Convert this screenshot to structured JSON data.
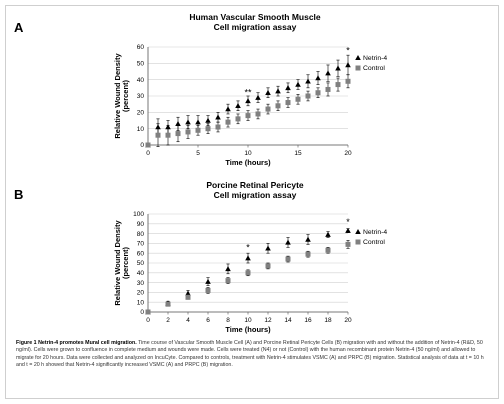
{
  "chart_data": [
    {
      "type": "scatter",
      "panel": "A",
      "title": "Human Vascular Smooth Muscle",
      "subtitle": "Cell migration assay",
      "xlabel": "Time (hours)",
      "ylabel_line1": "Relative Wound Density",
      "ylabel_line2": "(percent)",
      "xlim": [
        0,
        20
      ],
      "ylim": [
        0,
        60
      ],
      "xticks": [
        0,
        5,
        10,
        15,
        20
      ],
      "yticks": [
        0,
        10,
        20,
        30,
        40,
        50,
        60
      ],
      "grid": true,
      "legend_position": "right",
      "series": [
        {
          "name": "Netrin-4",
          "marker": "triangle",
          "color": "#000000",
          "x": [
            0,
            1,
            2,
            3,
            4,
            5,
            6,
            7,
            8,
            9,
            10,
            11,
            12,
            13,
            14,
            15,
            16,
            17,
            18,
            19,
            20
          ],
          "y": [
            0,
            11,
            11,
            13,
            14,
            14,
            15,
            17,
            22,
            24,
            27,
            29,
            32,
            33,
            35,
            37,
            39,
            41,
            44,
            47,
            49
          ],
          "err": [
            1,
            5,
            4,
            4,
            4,
            4,
            3,
            3,
            3,
            3,
            3,
            3,
            3,
            3,
            3,
            3,
            4,
            4,
            5,
            5,
            6
          ]
        },
        {
          "name": "Control",
          "marker": "square",
          "color": "#808080",
          "x": [
            0,
            1,
            2,
            3,
            4,
            5,
            6,
            7,
            8,
            9,
            10,
            11,
            12,
            13,
            14,
            15,
            16,
            17,
            18,
            19,
            20
          ],
          "y": [
            0,
            6,
            6,
            7,
            8,
            9,
            10,
            11,
            14,
            16,
            18,
            19,
            22,
            24,
            26,
            28,
            30,
            32,
            34,
            37,
            39
          ],
          "err": [
            1,
            7,
            6,
            5,
            4,
            3,
            3,
            3,
            3,
            3,
            3,
            3,
            3,
            3,
            3,
            3,
            3,
            3,
            4,
            4,
            4
          ]
        }
      ],
      "annotations": [
        {
          "text": "**",
          "x": 10,
          "y": 32
        },
        {
          "text": "*",
          "x": 20,
          "y": 58
        }
      ]
    },
    {
      "type": "scatter",
      "panel": "B",
      "title": "Porcine Retinal Pericyte",
      "subtitle": "Cell migration assay",
      "xlabel": "Time (hours)",
      "ylabel_line1": "Relative Wound Density",
      "ylabel_line2": "(percent)",
      "xlim": [
        0,
        20
      ],
      "ylim": [
        0,
        100
      ],
      "xticks": [
        0,
        2,
        4,
        6,
        8,
        10,
        12,
        14,
        16,
        18,
        20
      ],
      "yticks": [
        0,
        10,
        20,
        30,
        40,
        50,
        60,
        70,
        80,
        90,
        100
      ],
      "grid": true,
      "legend_position": "right",
      "series": [
        {
          "name": "Netrin-4",
          "marker": "triangle",
          "color": "#000000",
          "x": [
            0,
            2,
            4,
            6,
            8,
            10,
            12,
            14,
            16,
            18,
            20
          ],
          "y": [
            0,
            9,
            19,
            31,
            44,
            55,
            65,
            71,
            74,
            79,
            83
          ],
          "err": [
            1,
            2,
            3,
            4,
            5,
            5,
            5,
            5,
            5,
            3,
            2
          ]
        },
        {
          "name": "Control",
          "marker": "square",
          "color": "#808080",
          "x": [
            0,
            2,
            4,
            6,
            8,
            10,
            12,
            14,
            16,
            18,
            20
          ],
          "y": [
            0,
            8,
            15,
            22,
            32,
            40,
            47,
            54,
            59,
            63,
            69
          ],
          "err": [
            1,
            2,
            2,
            3,
            3,
            3,
            3,
            3,
            3,
            3,
            4
          ]
        }
      ],
      "annotations": [
        {
          "text": "*",
          "x": 10,
          "y": 66
        },
        {
          "text": "*",
          "x": 20,
          "y": 92
        }
      ]
    }
  ],
  "caption": {
    "figure_label": "Figure 1 Netrin-4 promotes Mural cell migration.",
    "text": "Time course of Vascular Smooth Muscle Cell (A) and Porcine Retinal Pericyte Cells (B) migration with and without the addition of Netrin-4 (R&D, 50 ng/ml). Cells were grown to confluence in complete medium and wounds were made. Cells were treated (N4) or not (Control) with the human recombinant protein Netrin-4 (50 ng/ml) and allowed to migrate for 20 hours. Data were collected and analyzed on IncuCyte. Compared to controls, treatment with Netrin-4 stimulates VSMC (A) and PRPC (B) migration. Statistical analysis of data at t = 10 h and t = 20 h showed that Netrin-4 significantly increased VSMC (A) and PRPC (B) migration."
  }
}
